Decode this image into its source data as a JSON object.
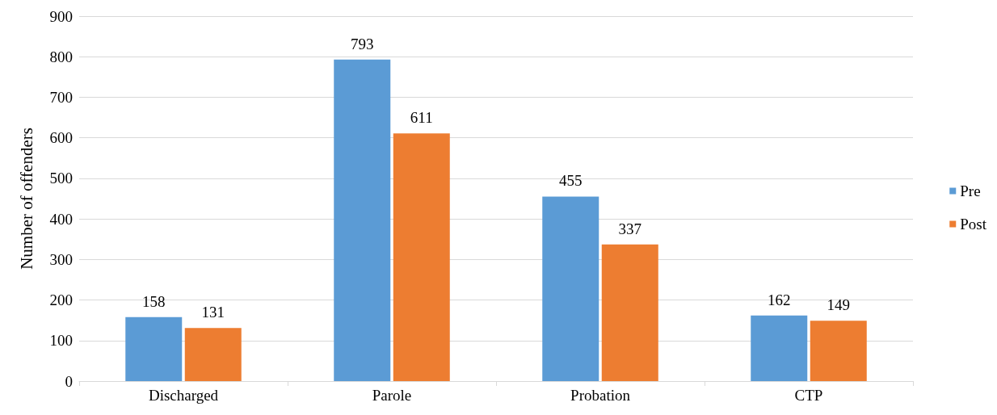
{
  "chart_data": {
    "type": "bar",
    "ylabel": "Number of offenders",
    "categories": [
      "Discharged",
      "Parole",
      "Probation",
      "CTP"
    ],
    "series": [
      {
        "name": "Pre",
        "color": "#5b9bd5",
        "values": [
          158,
          793,
          455,
          162
        ]
      },
      {
        "name": "Post",
        "color": "#ed7d31",
        "values": [
          131,
          611,
          337,
          149
        ]
      }
    ],
    "ylim": [
      0,
      900
    ],
    "yticks": [
      0,
      100,
      200,
      300,
      400,
      500,
      600,
      700,
      800,
      900
    ],
    "grid": "y",
    "legend": "right",
    "data_labels": true
  }
}
